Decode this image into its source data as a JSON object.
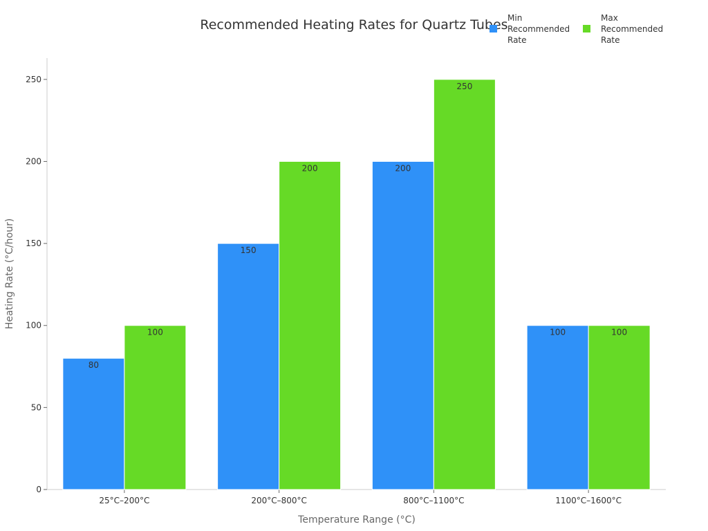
{
  "chart_data": {
    "type": "bar",
    "title": "Recommended Heating Rates for Quartz Tubes",
    "xlabel": "Temperature Range (°C)",
    "ylabel": "Heating Rate (°C/hour)",
    "categories": [
      "25°C–200°C",
      "200°C–800°C",
      "800°C–1100°C",
      "1100°C–1600°C"
    ],
    "series": [
      {
        "name": "Min Recommended Rate",
        "name_lines": [
          "Min",
          "Recommended",
          "Rate"
        ],
        "color": "#2f91f8",
        "values": [
          80,
          150,
          200,
          100
        ]
      },
      {
        "name": "Max Recommended Rate",
        "name_lines": [
          "Max",
          "Recommended",
          "Rate"
        ],
        "color": "#66da26",
        "values": [
          100,
          200,
          250,
          100
        ]
      }
    ],
    "yticks": [
      0,
      50,
      100,
      150,
      200,
      250
    ],
    "ylim": [
      0,
      263
    ],
    "grid": false,
    "legend": "top-right"
  }
}
